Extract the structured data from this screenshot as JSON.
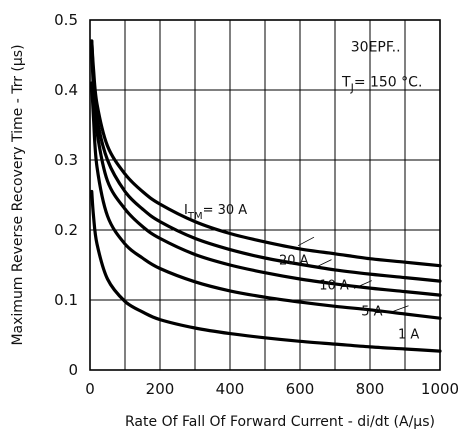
{
  "chart_data": {
    "type": "line",
    "title": "",
    "xlabel": "Rate Of Fall Of Forward Current - di/dt (A/µs)",
    "ylabel": "Maximum Reverse Recovery Time - Trr (µs)",
    "xlim": [
      0,
      1000
    ],
    "ylim": [
      0,
      0.5
    ],
    "x_ticks": [
      0,
      200,
      400,
      600,
      800,
      1000
    ],
    "y_ticks": [
      0,
      0.1,
      0.2,
      0.3,
      0.4,
      0.5
    ],
    "x_tick_labels": [
      "0",
      "200",
      "400",
      "600",
      "800",
      "1000"
    ],
    "y_tick_labels": [
      "0",
      "0.1",
      "0.2",
      "0.3",
      "0.4",
      "0.5"
    ],
    "grid": true,
    "annotations": {
      "device": "30EPF..",
      "condition": "T",
      "condition_sub": "J",
      "condition_tail": "= 150 °C."
    },
    "series": [
      {
        "name": "I_TM = 30 A",
        "label_main": "I",
        "label_sub": "TM",
        "label_tail": "= 30 A",
        "x": [
          5,
          10,
          20,
          50,
          100,
          150,
          200,
          300,
          400,
          500,
          600,
          700,
          800,
          900,
          1000
        ],
        "y": [
          0.47,
          0.43,
          0.38,
          0.32,
          0.28,
          0.255,
          0.237,
          0.212,
          0.195,
          0.183,
          0.173,
          0.166,
          0.159,
          0.154,
          0.149
        ]
      },
      {
        "name": "20 A",
        "label_main": "20 A",
        "x": [
          5,
          10,
          20,
          50,
          100,
          150,
          200,
          300,
          400,
          500,
          600,
          700,
          800,
          900,
          1000
        ],
        "y": [
          0.47,
          0.42,
          0.36,
          0.3,
          0.255,
          0.23,
          0.212,
          0.188,
          0.172,
          0.16,
          0.151,
          0.143,
          0.137,
          0.132,
          0.127
        ]
      },
      {
        "name": "10 A",
        "label_main": "10 A",
        "x": [
          5,
          10,
          20,
          50,
          100,
          150,
          200,
          300,
          400,
          500,
          600,
          700,
          800,
          900,
          1000
        ],
        "y": [
          0.46,
          0.4,
          0.34,
          0.27,
          0.23,
          0.205,
          0.188,
          0.165,
          0.15,
          0.139,
          0.13,
          0.123,
          0.117,
          0.112,
          0.107
        ]
      },
      {
        "name": "5 A",
        "label_main": "5 A",
        "x": [
          5,
          10,
          20,
          50,
          100,
          150,
          200,
          300,
          400,
          500,
          600,
          700,
          800,
          900,
          1000
        ],
        "y": [
          0.41,
          0.36,
          0.29,
          0.22,
          0.18,
          0.16,
          0.145,
          0.126,
          0.113,
          0.104,
          0.097,
          0.091,
          0.086,
          0.08,
          0.074
        ]
      },
      {
        "name": "1 A",
        "label_main": "1 A",
        "x": [
          5,
          10,
          20,
          50,
          100,
          150,
          200,
          300,
          400,
          500,
          600,
          700,
          800,
          900,
          1000
        ],
        "y": [
          0.255,
          0.22,
          0.18,
          0.13,
          0.098,
          0.083,
          0.072,
          0.06,
          0.052,
          0.046,
          0.041,
          0.037,
          0.033,
          0.03,
          0.027
        ]
      }
    ]
  }
}
